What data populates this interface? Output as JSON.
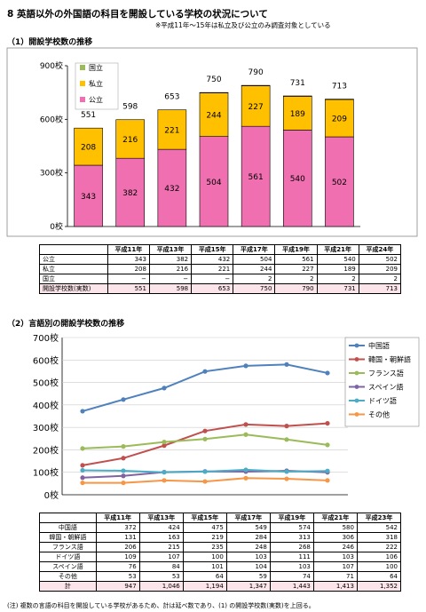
{
  "title": "8 英語以外の外国語の科目を開設している学校の状況について",
  "note": "※平成11年～15年は私立及び公立のみ調査対象としている",
  "section1": "（1）開設学校数の推移",
  "section2": "（2）言語別の開設学校数の推移",
  "footnote": "(注) 複数の言語の科目を開設している学校があるため、計は延べ数であり、(1) の開設学校数(実数)を上回る。",
  "colors": {
    "kouritsu": "#f06fb0",
    "shiritsu": "#ffc000",
    "kokuritsu": "#9bbb59"
  },
  "chart_data": [
    {
      "type": "bar",
      "categories": [
        "平成11年",
        "平成13年",
        "平成15年",
        "平成17年",
        "平成19年",
        "平成21年",
        "平成24年"
      ],
      "series": [
        {
          "name": "公立",
          "values": [
            343,
            382,
            432,
            504,
            561,
            540,
            502
          ]
        },
        {
          "name": "私立",
          "values": [
            208,
            216,
            221,
            244,
            227,
            189,
            209
          ]
        },
        {
          "name": "国立",
          "values": [
            0,
            0,
            0,
            2,
            2,
            2,
            2
          ]
        }
      ],
      "totals": [
        551,
        598,
        653,
        750,
        790,
        731,
        713
      ],
      "yticks": [
        "0校",
        "300校",
        "600校",
        "900校"
      ],
      "ylim": [
        0,
        900
      ],
      "legend_position": "top-left"
    },
    {
      "type": "line",
      "categories": [
        "平成11年",
        "平成13年",
        "平成15年",
        "平成17年",
        "平成19年",
        "平成21年",
        "平成23年"
      ],
      "series": [
        {
          "name": "中国語",
          "values": [
            372,
            424,
            475,
            549,
            574,
            580,
            542
          ],
          "color": "#4f81bd"
        },
        {
          "name": "韓国・朝鮮語",
          "values": [
            131,
            163,
            219,
            284,
            313,
            306,
            318
          ],
          "color": "#c0504d"
        },
        {
          "name": "フランス語",
          "values": [
            206,
            215,
            235,
            248,
            268,
            246,
            222
          ],
          "color": "#9bbb59"
        },
        {
          "name": "スペイン語",
          "values": [
            76,
            84,
            101,
            104,
            103,
            107,
            100
          ],
          "color": "#8064a2"
        },
        {
          "name": "ドイツ語",
          "values": [
            109,
            107,
            100,
            103,
            111,
            103,
            106
          ],
          "color": "#4bacc6"
        },
        {
          "name": "その他",
          "values": [
            53,
            53,
            64,
            59,
            74,
            71,
            64
          ],
          "color": "#f79646"
        }
      ],
      "yticks": [
        "0校",
        "100校",
        "200校",
        "300校",
        "400校",
        "500校",
        "600校",
        "700校"
      ],
      "ylim": [
        0,
        700
      ],
      "legend_position": "right"
    }
  ],
  "table1": {
    "header": [
      "",
      "平成11年",
      "平成13年",
      "平成15年",
      "平成17年",
      "平成19年",
      "平成21年",
      "平成24年"
    ],
    "rows": [
      [
        "公立",
        "343",
        "382",
        "432",
        "504",
        "561",
        "540",
        "502"
      ],
      [
        "私立",
        "208",
        "216",
        "221",
        "244",
        "227",
        "189",
        "209"
      ],
      [
        "国立",
        "−",
        "−",
        "−",
        "2",
        "2",
        "2",
        "2"
      ],
      [
        "開設学校数(実数)",
        "551",
        "598",
        "653",
        "750",
        "790",
        "731",
        "713"
      ]
    ]
  },
  "table2": {
    "header": [
      "",
      "平成11年",
      "平成13年",
      "平成15年",
      "平成17年",
      "平成19年",
      "平成21年",
      "平成23年"
    ],
    "rows": [
      [
        "中国語",
        "372",
        "424",
        "475",
        "549",
        "574",
        "580",
        "542"
      ],
      [
        "韓国・朝鮮語",
        "131",
        "163",
        "219",
        "284",
        "313",
        "306",
        "318"
      ],
      [
        "フランス語",
        "206",
        "215",
        "235",
        "248",
        "268",
        "246",
        "222"
      ],
      [
        "ドイツ語",
        "109",
        "107",
        "100",
        "103",
        "111",
        "103",
        "106"
      ],
      [
        "スペイン語",
        "76",
        "84",
        "101",
        "104",
        "103",
        "107",
        "100"
      ],
      [
        "その他",
        "53",
        "53",
        "64",
        "59",
        "74",
        "71",
        "64"
      ],
      [
        "計",
        "947",
        "1,046",
        "1,194",
        "1,347",
        "1,443",
        "1,413",
        "1,352"
      ]
    ]
  }
}
